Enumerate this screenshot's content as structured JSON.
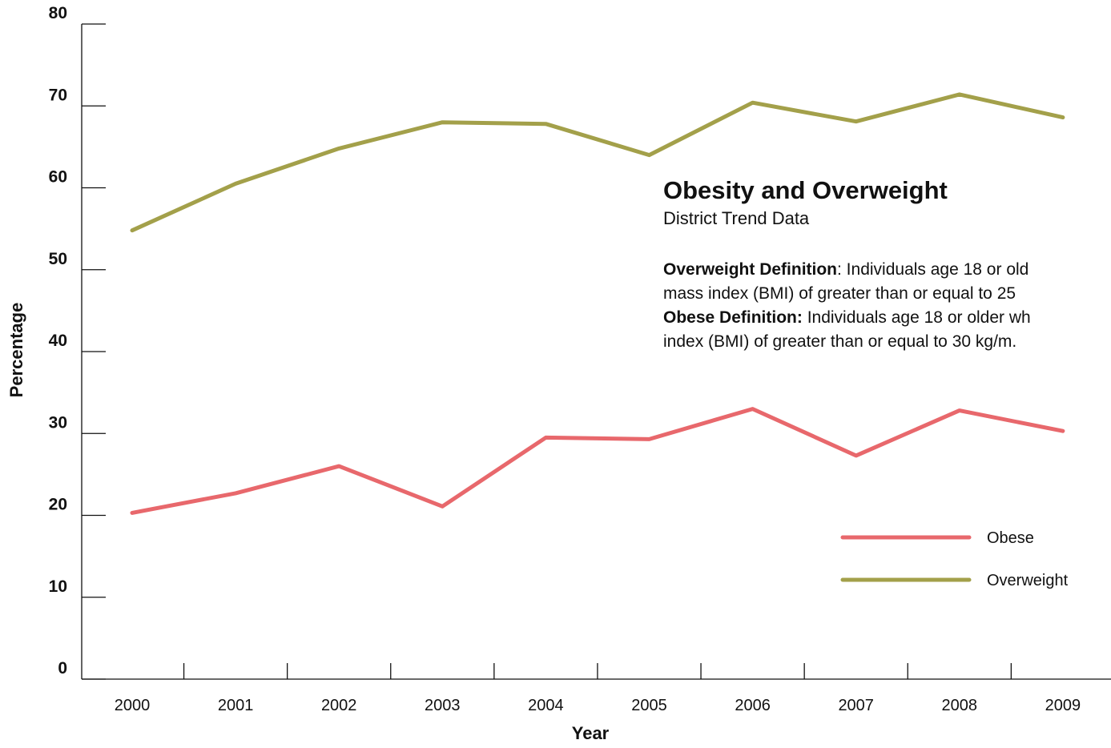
{
  "chart_data": {
    "type": "line",
    "title": "Obesity and Overweight",
    "subtitle": "District Trend Data",
    "xlabel": "Year",
    "ylabel": "Percentage",
    "ylim": [
      0,
      80
    ],
    "yticks": [
      0,
      10,
      20,
      30,
      40,
      50,
      60,
      70,
      80
    ],
    "categories": [
      "2000",
      "2001",
      "2002",
      "2003",
      "2004",
      "2005",
      "2006",
      "2007",
      "2008",
      "2009"
    ],
    "series": [
      {
        "name": "Obese",
        "color": "#E8686C",
        "values": [
          20.3,
          22.7,
          26.0,
          21.1,
          29.5,
          29.3,
          33.0,
          27.3,
          32.8,
          30.3
        ]
      },
      {
        "name": "Overweight",
        "color": "#A3A04A",
        "values": [
          54.8,
          60.5,
          64.8,
          68.0,
          67.8,
          64.0,
          70.4,
          68.1,
          71.4,
          68.6
        ]
      }
    ],
    "grid": false,
    "legend": "bottom-right",
    "definitions": {
      "overweight_label": "Overweight Definition",
      "overweight_line1": ": Individuals age 18 or old",
      "overweight_line2": "mass index (BMI) of greater than or equal to 25",
      "obese_label": "Obese Definition:",
      "obese_line1": " Individuals age 18 or older wh",
      "obese_line2": "index (BMI) of greater than or equal to 30 kg/m."
    }
  }
}
